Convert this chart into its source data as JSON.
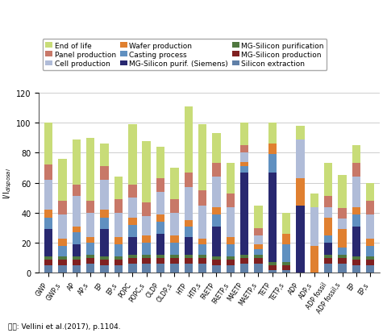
{
  "categories": [
    "GWP",
    "GWP,s",
    "AP",
    "AP,s",
    "EP",
    "EP,s",
    "POPC",
    "POPC,s",
    "OLDP",
    "OLDP,s",
    "HTP",
    "HTP,s",
    "FAETP",
    "FAETP,s",
    "MAETP",
    "MAETP,s",
    "TETP",
    "TETP,s",
    "ADP",
    "ADP,s",
    "ADP fossil",
    "ADP fossil,s",
    "EP",
    "EP,s"
  ],
  "series_order": [
    "Silicon extraction",
    "MG-Silicon production",
    "MG-Silicon purification",
    "MG-Silicon purif. (Siemens)",
    "Casting process",
    "Wafer production",
    "Cell production",
    "Panel production",
    "End of life"
  ],
  "series": {
    "Silicon extraction": [
      5,
      5,
      5,
      6,
      5,
      5,
      6,
      6,
      6,
      6,
      6,
      6,
      5,
      5,
      6,
      6,
      2,
      2,
      0,
      0,
      6,
      6,
      5,
      5
    ],
    "MG-Silicon production": [
      4,
      4,
      4,
      4,
      4,
      4,
      4,
      4,
      4,
      4,
      4,
      4,
      4,
      4,
      4,
      4,
      3,
      3,
      0,
      0,
      4,
      4,
      4,
      4
    ],
    "MG-Silicon purification": [
      2,
      2,
      2,
      2,
      2,
      2,
      2,
      2,
      2,
      2,
      2,
      2,
      2,
      2,
      2,
      2,
      2,
      2,
      0,
      0,
      2,
      2,
      2,
      2
    ],
    "MG-Silicon purif. (Siemens)": [
      18,
      0,
      8,
      0,
      18,
      0,
      12,
      0,
      14,
      0,
      12,
      0,
      20,
      0,
      55,
      0,
      60,
      0,
      45,
      0,
      8,
      0,
      20,
      0
    ],
    "Casting process": [
      8,
      7,
      8,
      8,
      8,
      8,
      8,
      8,
      8,
      8,
      7,
      7,
      8,
      8,
      4,
      4,
      12,
      12,
      0,
      0,
      5,
      5,
      8,
      7
    ],
    "Wafer production": [
      5,
      5,
      4,
      4,
      5,
      5,
      5,
      5,
      5,
      5,
      4,
      4,
      5,
      5,
      3,
      3,
      7,
      7,
      18,
      18,
      12,
      12,
      5,
      5
    ],
    "Cell production": [
      20,
      16,
      20,
      16,
      20,
      16,
      13,
      13,
      15,
      15,
      22,
      22,
      20,
      20,
      6,
      6,
      0,
      0,
      26,
      26,
      7,
      7,
      20,
      16
    ],
    "Panel production": [
      10,
      9,
      8,
      8,
      9,
      9,
      9,
      9,
      9,
      9,
      10,
      10,
      9,
      9,
      5,
      5,
      0,
      0,
      0,
      0,
      7,
      7,
      9,
      9
    ],
    "End of life": [
      28,
      28,
      30,
      42,
      15,
      15,
      40,
      41,
      21,
      21,
      44,
      44,
      20,
      20,
      15,
      15,
      14,
      14,
      9,
      9,
      22,
      22,
      12,
      12
    ]
  },
  "colors": {
    "End of life": "#c8dc78",
    "Panel production": "#c87868",
    "Cell production": "#b0bcd8",
    "Wafer production": "#e08030",
    "Casting process": "#6090c0",
    "MG-Silicon purif. (Siemens)": "#282870",
    "MG-Silicon purification": "#507840",
    "MG-Silicon production": "#802020",
    "Silicon extraction": "#6080a8"
  },
  "ylabel": "I/I disposal",
  "ylim": [
    0,
    120
  ],
  "yticks": [
    0,
    20,
    40,
    60,
    80,
    100,
    120
  ],
  "footnote": "자료: Vellini et al.(2017), p.1104.",
  "background_color": "#ffffff",
  "legend_fontsize": 6.5,
  "axis_fontsize": 7
}
